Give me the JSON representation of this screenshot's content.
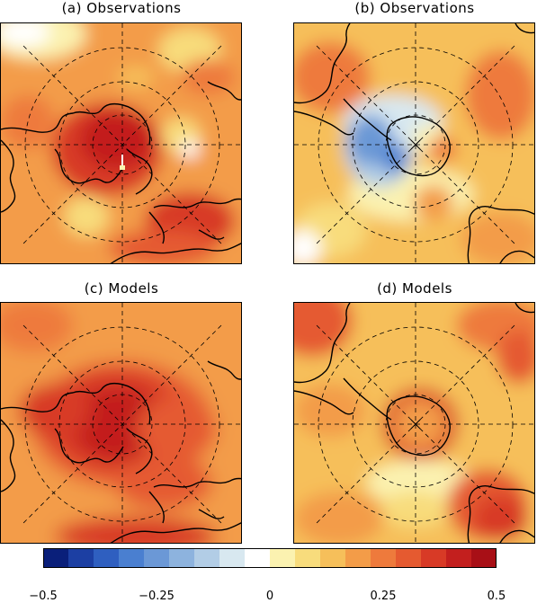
{
  "panels": [
    {
      "id": "a",
      "title": "(a)  Observations",
      "hemisphere": "north"
    },
    {
      "id": "b",
      "title": "(b)  Observations",
      "hemisphere": "south"
    },
    {
      "id": "c",
      "title": "(c)  Models",
      "hemisphere": "north"
    },
    {
      "id": "d",
      "title": "(d)  Models",
      "hemisphere": "south"
    }
  ],
  "colorbar": {
    "min": -0.5,
    "max": 0.5,
    "colors": [
      "#0a1f7a",
      "#1c3fa3",
      "#2f5fc0",
      "#4a7fd0",
      "#6b98d6",
      "#8db3de",
      "#b2cde6",
      "#d8e8f0",
      "#ffffff",
      "#fbf2b0",
      "#f8dc7c",
      "#f6bf5a",
      "#f39c48",
      "#ee7a3c",
      "#e55a30",
      "#d83a26",
      "#c31f1e",
      "#a80f16"
    ],
    "ticks": [
      {
        "value": -0.5,
        "label": "−0.5"
      },
      {
        "value": -0.25,
        "label": "−0.25"
      },
      {
        "value": 0,
        "label": "0"
      },
      {
        "value": 0.25,
        "label": "0.25"
      },
      {
        "value": 0.5,
        "label": "0.5"
      }
    ]
  }
}
